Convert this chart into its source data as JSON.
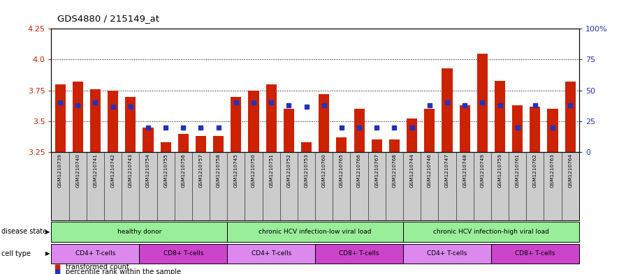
{
  "title": "GDS4880 / 215149_at",
  "samples": [
    "GSM1210739",
    "GSM1210740",
    "GSM1210741",
    "GSM1210742",
    "GSM1210743",
    "GSM1210754",
    "GSM1210755",
    "GSM1210756",
    "GSM1210757",
    "GSM1210758",
    "GSM1210745",
    "GSM1210750",
    "GSM1210751",
    "GSM1210752",
    "GSM1210753",
    "GSM1210760",
    "GSM1210765",
    "GSM1210766",
    "GSM1210767",
    "GSM1210768",
    "GSM1210744",
    "GSM1210746",
    "GSM1210747",
    "GSM1210748",
    "GSM1210749",
    "GSM1210759",
    "GSM1210761",
    "GSM1210762",
    "GSM1210763",
    "GSM1210764"
  ],
  "transformed_count": [
    3.8,
    3.82,
    3.76,
    3.75,
    3.7,
    3.45,
    3.33,
    3.4,
    3.38,
    3.38,
    3.7,
    3.75,
    3.8,
    3.6,
    3.33,
    3.72,
    3.37,
    3.6,
    3.35,
    3.35,
    3.52,
    3.6,
    3.93,
    3.63,
    4.05,
    3.83,
    3.63,
    3.62,
    3.6,
    3.82
  ],
  "percentile_rank": [
    40,
    38,
    40,
    37,
    37,
    20,
    20,
    20,
    20,
    20,
    40,
    40,
    40,
    38,
    37,
    38,
    20,
    20,
    20,
    20,
    20,
    38,
    40,
    38,
    40,
    38,
    20,
    38,
    20,
    38
  ],
  "ymin": 3.25,
  "ymax": 4.25,
  "yticks": [
    3.25,
    3.5,
    3.75,
    4.0,
    4.25
  ],
  "right_yticks_vals": [
    0,
    25,
    50,
    75,
    100
  ],
  "right_ytick_labels": [
    "0",
    "25",
    "50",
    "75",
    "100%"
  ],
  "bar_color": "#cc2200",
  "dot_color": "#2233bb",
  "bg_color": "#cccccc",
  "ds_color": "#99ee99",
  "cd4_color": "#dd88ee",
  "cd8_color": "#cc44cc",
  "disease_state_groups": [
    {
      "label": "healthy donor",
      "start": 0,
      "end": 9
    },
    {
      "label": "chronic HCV infection-low viral load",
      "start": 10,
      "end": 19
    },
    {
      "label": "chronic HCV infection-high viral load",
      "start": 20,
      "end": 29
    }
  ],
  "cell_type_groups": [
    {
      "label": "CD4+ T-cells",
      "start": 0,
      "end": 4,
      "type": "cd4"
    },
    {
      "label": "CD8+ T-cells",
      "start": 5,
      "end": 9,
      "type": "cd8"
    },
    {
      "label": "CD4+ T-cells",
      "start": 10,
      "end": 14,
      "type": "cd4"
    },
    {
      "label": "CD8+ T-cells",
      "start": 15,
      "end": 19,
      "type": "cd8"
    },
    {
      "label": "CD4+ T-cells",
      "start": 20,
      "end": 24,
      "type": "cd4"
    },
    {
      "label": "CD8+ T-cells",
      "start": 25,
      "end": 29,
      "type": "cd8"
    }
  ]
}
